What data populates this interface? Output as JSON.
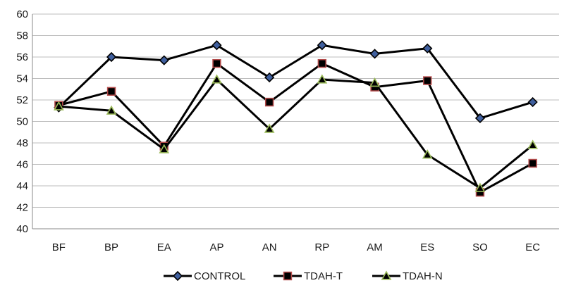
{
  "chart_data": {
    "type": "line",
    "title": "",
    "xlabel": "",
    "ylabel": "",
    "categories": [
      "BF",
      "BP",
      "EA",
      "AP",
      "AN",
      "RP",
      "AM",
      "ES",
      "SO",
      "EC"
    ],
    "ylim": [
      40,
      60
    ],
    "yticks": [
      40,
      42,
      44,
      46,
      48,
      50,
      52,
      54,
      56,
      58,
      60
    ],
    "grid": "horizontal",
    "legend": "bottom",
    "series": [
      {
        "name": "CONTROL",
        "marker": "diamond",
        "line_color": "#000000",
        "marker_fill": "#3f5f9e",
        "values": [
          51.3,
          56.0,
          55.7,
          57.1,
          54.1,
          57.1,
          56.3,
          56.8,
          50.3,
          51.8
        ]
      },
      {
        "name": "TDAH-T",
        "marker": "square",
        "line_color": "#000000",
        "marker_fill": "#b34a4a",
        "values": [
          51.5,
          52.8,
          47.7,
          55.4,
          51.8,
          55.4,
          53.2,
          53.8,
          43.4,
          46.1
        ]
      },
      {
        "name": "TDAH-N",
        "marker": "triangle",
        "line_color": "#000000",
        "marker_fill": "#9bbb59",
        "values": [
          51.4,
          51.0,
          47.4,
          53.9,
          49.3,
          53.9,
          53.6,
          46.9,
          43.8,
          47.8
        ]
      }
    ]
  }
}
